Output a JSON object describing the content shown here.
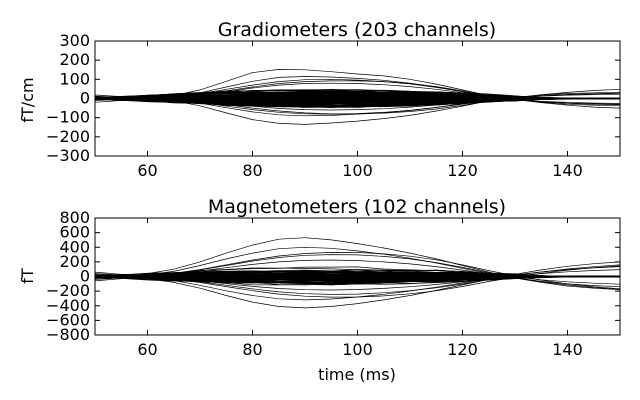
{
  "chart_data": [
    {
      "type": "line",
      "title": "Gradiometers (203 channels)",
      "xlabel": "",
      "ylabel": "fT/cm",
      "xlim": [
        50,
        150
      ],
      "ylim": [
        -300,
        300
      ],
      "xticks": [
        60,
        80,
        100,
        120,
        140
      ],
      "yticks": [
        300,
        200,
        100,
        0,
        -100,
        -200,
        -300
      ],
      "ytick_labels": [
        "300",
        "200",
        "100",
        "0",
        "−100",
        "−200",
        "−300"
      ],
      "grid": false,
      "legend": "none",
      "line_color": "#000000",
      "channel_count": 203,
      "x": [
        50,
        55,
        60,
        65,
        70,
        75,
        80,
        85,
        90,
        95,
        100,
        105,
        110,
        115,
        120,
        125,
        130,
        135,
        140,
        145,
        150
      ],
      "series": [
        {
          "values": [
            10,
            5,
            0,
            15,
            45,
            90,
            135,
            152,
            150,
            140,
            128,
            118,
            100,
            75,
            45,
            15,
            -5,
            -20,
            -30,
            -35,
            -38
          ]
        },
        {
          "values": [
            -8,
            -4,
            0,
            -12,
            -38,
            -75,
            -110,
            -130,
            -135,
            -128,
            -118,
            -105,
            -88,
            -65,
            -40,
            -12,
            5,
            18,
            26,
            30,
            33
          ]
        },
        {
          "values": [
            6,
            3,
            0,
            10,
            30,
            60,
            90,
            110,
            115,
            112,
            105,
            95,
            80,
            60,
            35,
            10,
            -6,
            -18,
            -25,
            -30,
            -32
          ]
        },
        {
          "values": [
            -5,
            -2,
            0,
            -8,
            -24,
            -48,
            -70,
            -85,
            -90,
            -88,
            -82,
            -74,
            -62,
            -46,
            -27,
            -8,
            5,
            14,
            20,
            24,
            27
          ]
        },
        {
          "values": [
            18,
            10,
            0,
            5,
            20,
            40,
            60,
            78,
            88,
            92,
            92,
            88,
            78,
            62,
            40,
            15,
            -5,
            -22,
            -35,
            -45,
            -50
          ]
        },
        {
          "values": [
            -20,
            -10,
            0,
            -4,
            -15,
            -32,
            -50,
            -65,
            -75,
            -80,
            -80,
            -76,
            -68,
            -55,
            -36,
            -14,
            4,
            20,
            32,
            42,
            48
          ]
        },
        {
          "values": [
            4,
            2,
            0,
            6,
            18,
            35,
            55,
            70,
            78,
            80,
            78,
            72,
            62,
            48,
            30,
            10,
            -4,
            -15,
            -20,
            -24,
            -26
          ]
        },
        {
          "values": [
            -3,
            -1,
            0,
            -4,
            -12,
            -25,
            -40,
            -52,
            -58,
            -60,
            -58,
            -53,
            -45,
            -34,
            -21,
            -6,
            4,
            12,
            17,
            20,
            22
          ]
        },
        {
          "values": [
            12,
            6,
            0,
            8,
            25,
            48,
            70,
            88,
            98,
            100,
            96,
            88,
            76,
            58,
            36,
            12,
            -4,
            -16,
            -24,
            -28,
            -30
          ]
        },
        {
          "values": [
            -10,
            -5,
            0,
            -6,
            -20,
            -40,
            -58,
            -72,
            -80,
            -82,
            -79,
            -72,
            -62,
            -47,
            -29,
            -9,
            4,
            14,
            21,
            25,
            28
          ]
        }
      ]
    },
    {
      "type": "line",
      "title": "Magnetometers (102 channels)",
      "xlabel": "time (ms)",
      "ylabel": "fT",
      "xlim": [
        50,
        150
      ],
      "ylim": [
        -800,
        800
      ],
      "xticks": [
        60,
        80,
        100,
        120,
        140
      ],
      "yticks": [
        800,
        600,
        400,
        200,
        0,
        -200,
        -400,
        -600,
        -800
      ],
      "ytick_labels": [
        "800",
        "600",
        "400",
        "200",
        "0",
        "−200",
        "−400",
        "−600",
        "−800"
      ],
      "grid": false,
      "legend": "none",
      "line_color": "#000000",
      "channel_count": 102,
      "x": [
        50,
        55,
        60,
        65,
        70,
        75,
        80,
        85,
        90,
        95,
        100,
        105,
        110,
        115,
        120,
        125,
        130,
        135,
        140,
        145,
        150
      ],
      "series": [
        {
          "values": [
            40,
            20,
            40,
            100,
            200,
            320,
            430,
            510,
            530,
            500,
            450,
            390,
            320,
            240,
            150,
            60,
            -20,
            -80,
            -130,
            -160,
            -180
          ]
        },
        {
          "values": [
            -40,
            -20,
            -30,
            -80,
            -160,
            -260,
            -350,
            -410,
            -430,
            -410,
            -370,
            -320,
            -260,
            -190,
            -115,
            -40,
            30,
            90,
            140,
            175,
            200
          ]
        },
        {
          "values": [
            20,
            10,
            25,
            70,
            150,
            240,
            320,
            380,
            400,
            385,
            350,
            305,
            250,
            185,
            112,
            40,
            -20,
            -65,
            -100,
            -125,
            -140
          ]
        },
        {
          "values": [
            -20,
            -10,
            -18,
            -55,
            -120,
            -195,
            -260,
            -305,
            -320,
            -308,
            -280,
            -243,
            -198,
            -146,
            -88,
            -28,
            22,
            62,
            94,
            118,
            134
          ]
        },
        {
          "values": [
            60,
            30,
            20,
            40,
            90,
            150,
            210,
            260,
            290,
            300,
            295,
            275,
            240,
            190,
            125,
            50,
            -15,
            -70,
            -115,
            -150,
            -175
          ]
        },
        {
          "values": [
            -60,
            -30,
            -15,
            -30,
            -70,
            -120,
            -170,
            -210,
            -235,
            -245,
            -240,
            -222,
            -194,
            -154,
            -102,
            -40,
            15,
            62,
            102,
            134,
            158
          ]
        },
        {
          "values": [
            10,
            5,
            12,
            35,
            75,
            120,
            165,
            200,
            220,
            225,
            218,
            200,
            172,
            135,
            88,
            33,
            -10,
            -45,
            -72,
            -92,
            -105
          ]
        },
        {
          "values": [
            -12,
            -6,
            -10,
            -28,
            -60,
            -98,
            -135,
            -164,
            -180,
            -184,
            -178,
            -163,
            -140,
            -110,
            -72,
            -27,
            10,
            40,
            64,
            82,
            94
          ]
        },
        {
          "values": [
            30,
            15,
            18,
            45,
            95,
            160,
            225,
            280,
            315,
            330,
            328,
            310,
            278,
            228,
            160,
            80,
            10,
            -50,
            -100,
            -140,
            -168
          ]
        },
        {
          "values": [
            -30,
            -15,
            -14,
            -38,
            -82,
            -138,
            -194,
            -240,
            -270,
            -282,
            -280,
            -265,
            -237,
            -195,
            -137,
            -68,
            -8,
            44,
            86,
            120,
            145
          ]
        }
      ]
    }
  ]
}
